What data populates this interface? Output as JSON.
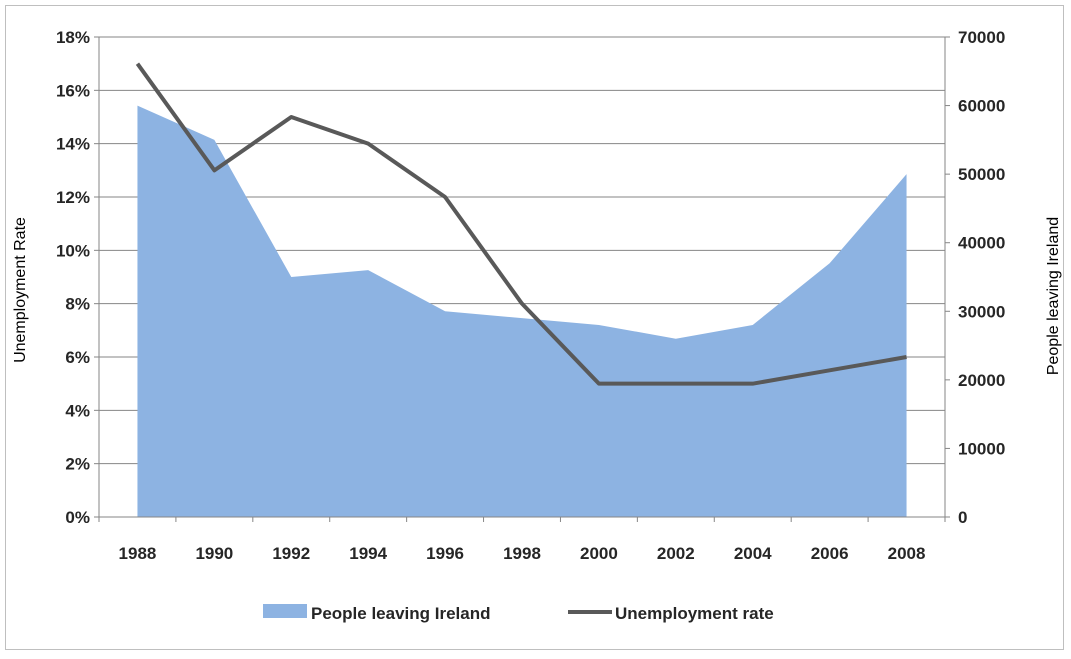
{
  "chart_data": {
    "type": "area+line",
    "title": "",
    "x": [
      1988,
      1990,
      1992,
      1994,
      1996,
      1998,
      2000,
      2002,
      2004,
      2006,
      2008
    ],
    "x_tick_labels": [
      "1988",
      "1990",
      "1992",
      "1994",
      "1996",
      "1998",
      "2000",
      "2002",
      "2004",
      "2006",
      "2008"
    ],
    "y_left_label": "Unemployment Rate",
    "y_right_label": "People leaving Ireland",
    "y_left_range": [
      0,
      18
    ],
    "y_left_ticks": [
      "0%",
      "2%",
      "4%",
      "6%",
      "8%",
      "10%",
      "12%",
      "14%",
      "16%",
      "18%"
    ],
    "y_right_range": [
      0,
      70000
    ],
    "y_right_ticks": [
      "0",
      "10000",
      "20000",
      "30000",
      "40000",
      "50000",
      "60000",
      "70000"
    ],
    "grid": true,
    "legend_position": "bottom",
    "series": [
      {
        "name": "People leaving Ireland",
        "type": "area",
        "axis": "right",
        "color": "#8db3e2",
        "values": [
          60000,
          55000,
          35000,
          36000,
          30000,
          29000,
          28000,
          26000,
          28000,
          37000,
          50000
        ]
      },
      {
        "name": "Unemployment rate",
        "type": "line",
        "axis": "left",
        "color": "#595959",
        "values": [
          17,
          13,
          15,
          14,
          12,
          8,
          5,
          5,
          5,
          5.5,
          6
        ]
      }
    ]
  }
}
